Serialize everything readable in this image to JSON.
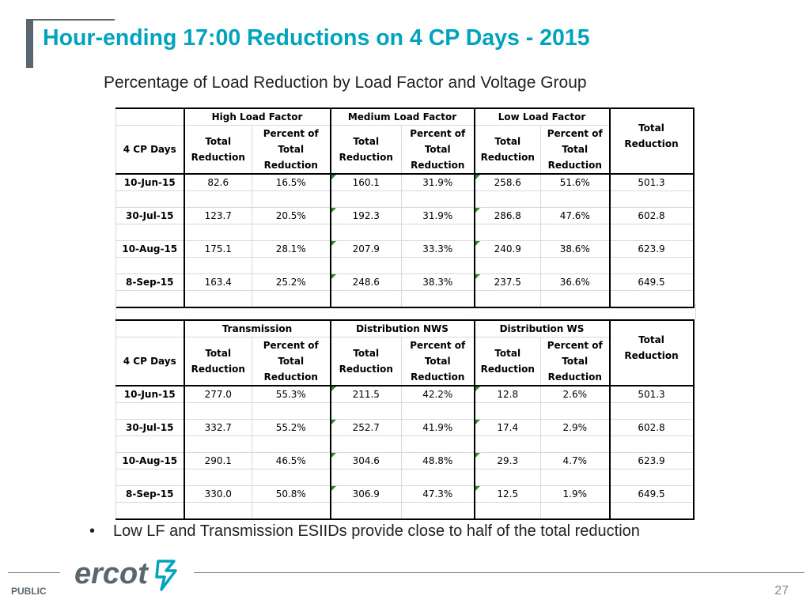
{
  "title": "Hour-ending 17:00 Reductions on 4 CP Days - 2015",
  "subtitle": "Percentage of Load Reduction by Load Factor and Voltage Group",
  "table1": {
    "groups": [
      "High Load Factor",
      "Medium Load Factor",
      "Low Load Factor"
    ],
    "header": {
      "days": "4 CP Days",
      "total_reduction": [
        "Total",
        "Reduction"
      ],
      "percent_of": [
        "Percent of",
        "Total",
        "Reduction"
      ],
      "grand_total": [
        "Total",
        "Reduction"
      ]
    },
    "rows": [
      {
        "date": "10-Jun-15",
        "v": [
          "82.6",
          "16.5%",
          "160.1",
          "31.9%",
          "258.6",
          "51.6%",
          "501.3"
        ]
      },
      {
        "date": "30-Jul-15",
        "v": [
          "123.7",
          "20.5%",
          "192.3",
          "31.9%",
          "286.8",
          "47.6%",
          "602.8"
        ]
      },
      {
        "date": "10-Aug-15",
        "v": [
          "175.1",
          "28.1%",
          "207.9",
          "33.3%",
          "240.9",
          "38.6%",
          "623.9"
        ]
      },
      {
        "date": "8-Sep-15",
        "v": [
          "163.4",
          "25.2%",
          "248.6",
          "38.3%",
          "237.5",
          "36.6%",
          "649.5"
        ]
      }
    ]
  },
  "table2": {
    "groups": [
      "Transmission",
      "Distribution NWS",
      "Distribution WS"
    ],
    "header": {
      "days": "4 CP Days",
      "total_reduction": [
        "Total",
        "Reduction"
      ],
      "percent_of": [
        "Percent of",
        "Total",
        "Reduction"
      ],
      "grand_total": [
        "Total",
        "Reduction"
      ]
    },
    "rows": [
      {
        "date": "10-Jun-15",
        "v": [
          "277.0",
          "55.3%",
          "211.5",
          "42.2%",
          "12.8",
          "2.6%",
          "501.3"
        ]
      },
      {
        "date": "30-Jul-15",
        "v": [
          "332.7",
          "55.2%",
          "252.7",
          "41.9%",
          "17.4",
          "2.9%",
          "602.8"
        ]
      },
      {
        "date": "10-Aug-15",
        "v": [
          "290.1",
          "46.5%",
          "304.6",
          "48.8%",
          "29.3",
          "4.7%",
          "623.9"
        ]
      },
      {
        "date": "8-Sep-15",
        "v": [
          "330.0",
          "50.8%",
          "306.9",
          "47.3%",
          "12.5",
          "1.9%",
          "649.5"
        ]
      }
    ]
  },
  "bullet": "Low LF and Transmission ESIIDs provide close to half of the total reduction",
  "bullet_marker": "•",
  "footer": {
    "logo": "ercot",
    "label": "PUBLIC",
    "page": "27"
  },
  "colors": {
    "title": "#00a3bd",
    "accent_bar": "#5a6670",
    "logo": "#5a6670"
  }
}
